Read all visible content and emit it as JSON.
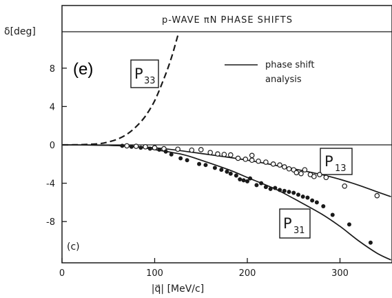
{
  "chart_data": {
    "type": "line",
    "title": "p-WAVE πN PHASE SHIFTS",
    "panel_tag": "(e)",
    "corner_tag": "(c)",
    "xlabel": "|q⃗| [MeV/c]",
    "ylabel": "δ[deg]",
    "xlim": [
      0,
      355
    ],
    "ylim": [
      -12,
      12
    ],
    "xticks": [
      0,
      100,
      200,
      300
    ],
    "yticks": [
      8,
      4,
      0,
      -4,
      -8
    ],
    "ytick_labels": [
      "8",
      "4",
      "0",
      "-4",
      "-8"
    ],
    "grid": false,
    "legend": {
      "label_line1": "phase shift",
      "label_line2": "analysis",
      "placement": "top-center"
    },
    "curve_labels": [
      {
        "main": "P",
        "sub": "33"
      },
      {
        "main": "P",
        "sub": "13"
      },
      {
        "main": "P",
        "sub": "31"
      }
    ],
    "series": [
      {
        "style": "dashed",
        "x": [
          0,
          20,
          40,
          50,
          60,
          70,
          80,
          90,
          100,
          110,
          115,
          120,
          125,
          128
        ],
        "y": [
          0,
          0.02,
          0.12,
          0.3,
          0.6,
          1.1,
          1.9,
          3.0,
          4.6,
          6.9,
          8.2,
          9.7,
          11.4,
          12.3
        ]
      },
      {
        "style": "solid",
        "x": [
          0,
          50,
          100,
          150,
          200,
          250,
          280,
          300,
          320,
          340,
          355
        ],
        "y": [
          0,
          -0.05,
          -0.3,
          -0.9,
          -1.6,
          -2.5,
          -3.1,
          -3.6,
          -4.2,
          -4.9,
          -5.4
        ]
      },
      {
        "style": "solid",
        "x": [
          0,
          50,
          80,
          100,
          130,
          150,
          180,
          200,
          230,
          250,
          280,
          300,
          320,
          340,
          355
        ],
        "y": [
          0,
          -0.05,
          -0.2,
          -0.5,
          -1.0,
          -1.6,
          -2.6,
          -3.4,
          -4.6,
          -5.6,
          -7.2,
          -8.5,
          -10.0,
          -11.3,
          -12.0
        ]
      }
    ],
    "scatter_open": [
      {
        "x": 70,
        "y": -0.1
      },
      {
        "x": 80,
        "y": -0.15
      },
      {
        "x": 90,
        "y": -0.2
      },
      {
        "x": 100,
        "y": -0.3
      },
      {
        "x": 110,
        "y": -0.4
      },
      {
        "x": 125,
        "y": -0.45
      },
      {
        "x": 140,
        "y": -0.55
      },
      {
        "x": 150,
        "y": -0.5
      },
      {
        "x": 160,
        "y": -0.8
      },
      {
        "x": 168,
        "y": -0.95
      },
      {
        "x": 175,
        "y": -1.0
      },
      {
        "x": 182,
        "y": -1.05
      },
      {
        "x": 190,
        "y": -1.4
      },
      {
        "x": 198,
        "y": -1.5
      },
      {
        "x": 205,
        "y": -1.6
      },
      {
        "x": 205,
        "y": -1.1
      },
      {
        "x": 212,
        "y": -1.7
      },
      {
        "x": 220,
        "y": -1.8
      },
      {
        "x": 228,
        "y": -2.0
      },
      {
        "x": 235,
        "y": -2.1
      },
      {
        "x": 240,
        "y": -2.3
      },
      {
        "x": 245,
        "y": -2.5
      },
      {
        "x": 250,
        "y": -2.6
      },
      {
        "x": 253,
        "y": -2.9
      },
      {
        "x": 258,
        "y": -3.0
      },
      {
        "x": 262,
        "y": -2.6
      },
      {
        "x": 268,
        "y": -3.1
      },
      {
        "x": 272,
        "y": -3.3
      },
      {
        "x": 278,
        "y": -3.1
      },
      {
        "x": 285,
        "y": -3.4
      },
      {
        "x": 305,
        "y": -4.3
      },
      {
        "x": 340,
        "y": -5.3
      }
    ],
    "scatter_filled": [
      {
        "x": 65,
        "y": -0.1
      },
      {
        "x": 75,
        "y": -0.2
      },
      {
        "x": 85,
        "y": -0.3
      },
      {
        "x": 95,
        "y": -0.4
      },
      {
        "x": 105,
        "y": -0.5
      },
      {
        "x": 112,
        "y": -0.7
      },
      {
        "x": 118,
        "y": -1.0
      },
      {
        "x": 128,
        "y": -1.4
      },
      {
        "x": 135,
        "y": -1.6
      },
      {
        "x": 148,
        "y": -2.0
      },
      {
        "x": 155,
        "y": -2.1
      },
      {
        "x": 165,
        "y": -2.4
      },
      {
        "x": 172,
        "y": -2.6
      },
      {
        "x": 178,
        "y": -2.8
      },
      {
        "x": 182,
        "y": -3.0
      },
      {
        "x": 188,
        "y": -3.2
      },
      {
        "x": 192,
        "y": -3.6
      },
      {
        "x": 196,
        "y": -3.7
      },
      {
        "x": 200,
        "y": -3.8
      },
      {
        "x": 203,
        "y": -3.5
      },
      {
        "x": 210,
        "y": -4.2
      },
      {
        "x": 215,
        "y": -4.0
      },
      {
        "x": 220,
        "y": -4.4
      },
      {
        "x": 225,
        "y": -4.6
      },
      {
        "x": 230,
        "y": -4.5
      },
      {
        "x": 235,
        "y": -4.7
      },
      {
        "x": 240,
        "y": -4.8
      },
      {
        "x": 245,
        "y": -4.9
      },
      {
        "x": 250,
        "y": -5.0
      },
      {
        "x": 255,
        "y": -5.2
      },
      {
        "x": 260,
        "y": -5.4
      },
      {
        "x": 265,
        "y": -5.5
      },
      {
        "x": 270,
        "y": -5.8
      },
      {
        "x": 275,
        "y": -6.0
      },
      {
        "x": 282,
        "y": -6.4
      },
      {
        "x": 292,
        "y": -7.3
      },
      {
        "x": 310,
        "y": -8.3
      },
      {
        "x": 333,
        "y": -10.2
      }
    ]
  }
}
